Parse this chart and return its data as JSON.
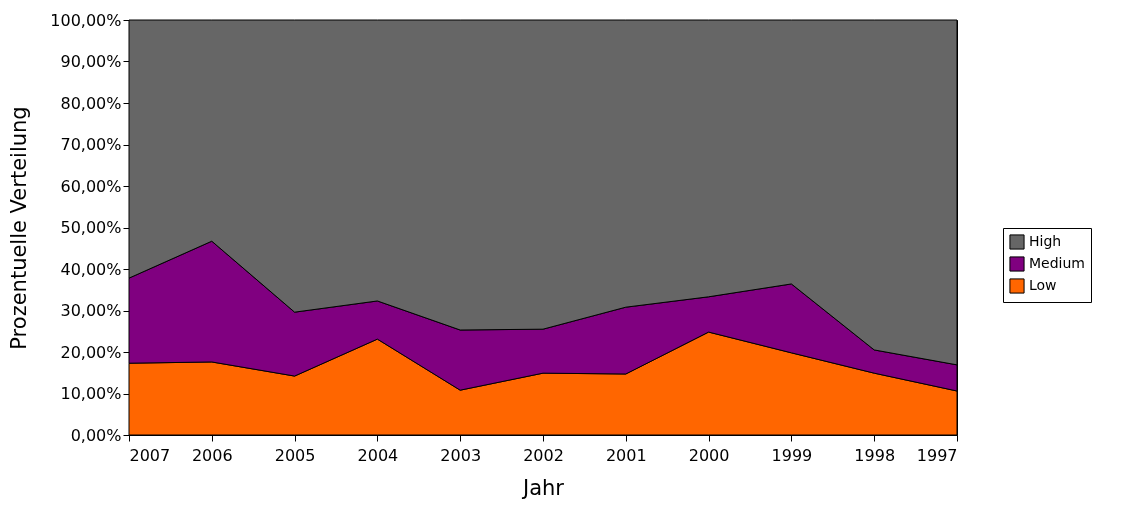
{
  "chart_data": {
    "type": "area",
    "stacked": true,
    "xlabel": "Jahr",
    "ylabel": "Prozentuelle Verteilung",
    "categories": [
      "2007",
      "2006",
      "2005",
      "2004",
      "2003",
      "2002",
      "2001",
      "2000",
      "1999",
      "1998",
      "1997"
    ],
    "series": [
      {
        "name": "Low",
        "color": "#ff6600",
        "values": [
          17.3,
          17.6,
          14.2,
          23.1,
          10.8,
          14.9,
          14.7,
          24.8,
          19.8,
          14.9,
          10.6
        ]
      },
      {
        "name": "Medium",
        "color": "#800080",
        "values": [
          20.5,
          29.1,
          15.4,
          9.2,
          14.5,
          10.6,
          16.1,
          8.5,
          16.6,
          5.6,
          6.3
        ]
      },
      {
        "name": "High",
        "color": "#666666",
        "values": [
          62.2,
          53.3,
          70.4,
          67.7,
          74.7,
          74.5,
          69.2,
          66.7,
          63.6,
          79.5,
          83.1
        ]
      }
    ],
    "ylim": [
      0,
      100
    ],
    "yticks": [
      {
        "value": 0,
        "label": "0,00%"
      },
      {
        "value": 10,
        "label": "10,00%"
      },
      {
        "value": 20,
        "label": "20,00%"
      },
      {
        "value": 30,
        "label": "30,00%"
      },
      {
        "value": 40,
        "label": "40,00%"
      },
      {
        "value": 50,
        "label": "50,00%"
      },
      {
        "value": 60,
        "label": "60,00%"
      },
      {
        "value": 70,
        "label": "70,00%"
      },
      {
        "value": 80,
        "label": "80,00%"
      },
      {
        "value": 90,
        "label": "90,00%"
      },
      {
        "value": 100,
        "label": "100,00%"
      }
    ],
    "grid": false,
    "legend": "right"
  }
}
